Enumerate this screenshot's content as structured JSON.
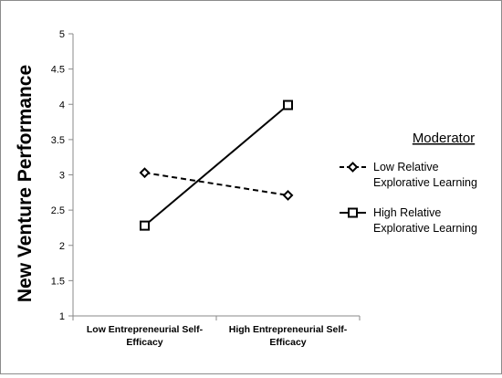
{
  "chart_data": {
    "type": "line",
    "title": "",
    "xlabel": "",
    "ylabel": "New Venture Performance",
    "categories": [
      "Low Entrepreneurial Self-Efficacy",
      "High Entrepreneurial Self-Efficacy"
    ],
    "category_lines": [
      [
        "Low Entrepreneurial Self-",
        "Efficacy"
      ],
      [
        "High Entrepreneurial Self-",
        "Efficacy"
      ]
    ],
    "ylim": [
      1,
      5
    ],
    "yticks": [
      "1",
      "1.5",
      "2",
      "2.5",
      "3",
      "3.5",
      "4",
      "4.5",
      "5"
    ],
    "grid": false,
    "legend": {
      "title": "Moderator",
      "placement": "right"
    },
    "series": [
      {
        "name": "Low Relative Explorative Learning",
        "name_lines": [
          "Low Relative",
          "Explorative Learning"
        ],
        "values": [
          3.03,
          2.71
        ],
        "line_style": "dashed",
        "marker": "diamond",
        "color": "#000000"
      },
      {
        "name": "High Relative Explorative Learning",
        "name_lines": [
          "High Relative",
          "Explorative Learning"
        ],
        "values": [
          2.28,
          3.99
        ],
        "line_style": "solid",
        "marker": "square",
        "color": "#000000"
      }
    ]
  }
}
